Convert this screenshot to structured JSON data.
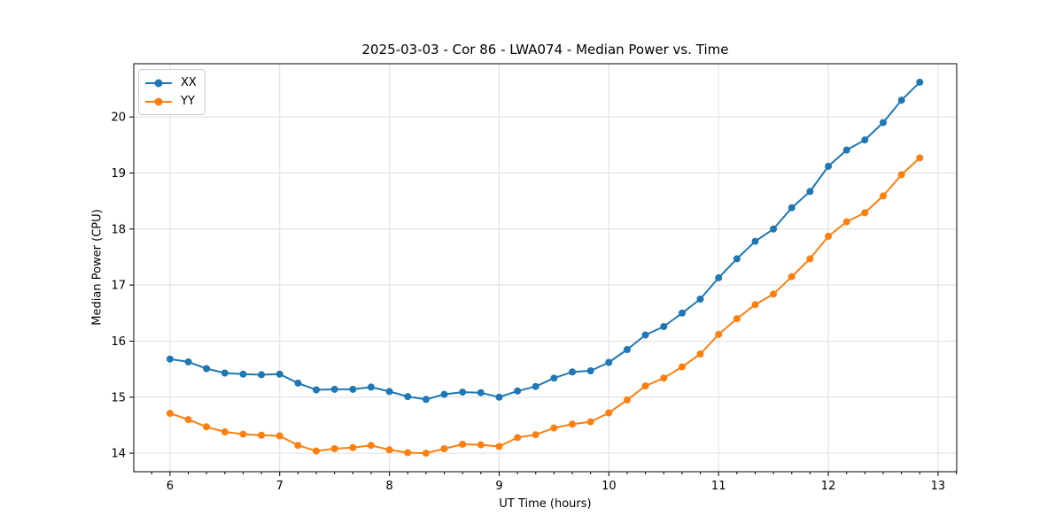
{
  "chart_data": {
    "type": "line",
    "title": "2025-03-03 - Cor 86 - LWA074 - Median Power vs. Time",
    "xlabel": "UT Time (hours)",
    "ylabel": "Median Power (CPU)",
    "xlim": [
      5.67,
      13.17
    ],
    "ylim": [
      13.67,
      20.95
    ],
    "xticks": [
      6,
      7,
      8,
      9,
      10,
      11,
      12,
      13
    ],
    "yticks": [
      14,
      15,
      16,
      17,
      18,
      19,
      20
    ],
    "x_minor_tick_interval_hours": 0.16667,
    "grid": true,
    "grid_color": "#dedede",
    "spine_color": "#000000",
    "legend_position": "upper-left",
    "x": [
      6.0,
      6.167,
      6.333,
      6.5,
      6.667,
      6.833,
      7.0,
      7.167,
      7.333,
      7.5,
      7.667,
      7.833,
      8.0,
      8.167,
      8.333,
      8.5,
      8.667,
      8.833,
      9.0,
      9.167,
      9.333,
      9.5,
      9.667,
      9.833,
      10.0,
      10.167,
      10.333,
      10.5,
      10.667,
      10.833,
      11.0,
      11.167,
      11.333,
      11.5,
      11.667,
      11.833,
      12.0,
      12.167,
      12.333,
      12.5,
      12.667,
      12.833
    ],
    "series": [
      {
        "name": "XX",
        "color": "#1f77b4",
        "values": [
          15.68,
          15.63,
          15.51,
          15.43,
          15.41,
          15.4,
          15.41,
          15.25,
          15.13,
          15.14,
          15.14,
          15.18,
          15.1,
          15.01,
          14.96,
          15.05,
          15.09,
          15.08,
          15.0,
          15.11,
          15.19,
          15.34,
          15.45,
          15.47,
          15.62,
          15.85,
          16.11,
          16.26,
          16.5,
          16.75,
          17.13,
          17.47,
          17.78,
          18.0,
          18.38,
          18.67,
          19.12,
          19.41,
          19.59,
          19.9,
          20.3,
          20.62
        ]
      },
      {
        "name": "YY",
        "color": "#ff7f0e",
        "values": [
          14.71,
          14.6,
          14.47,
          14.38,
          14.34,
          14.32,
          14.31,
          14.14,
          14.04,
          14.08,
          14.1,
          14.14,
          14.06,
          14.01,
          14.0,
          14.08,
          14.16,
          14.15,
          14.12,
          14.28,
          14.33,
          14.45,
          14.52,
          14.56,
          14.72,
          14.95,
          15.2,
          15.34,
          15.54,
          15.77,
          16.12,
          16.4,
          16.65,
          16.84,
          17.15,
          17.47,
          17.87,
          18.13,
          18.29,
          18.59,
          18.97,
          19.27
        ]
      }
    ]
  }
}
